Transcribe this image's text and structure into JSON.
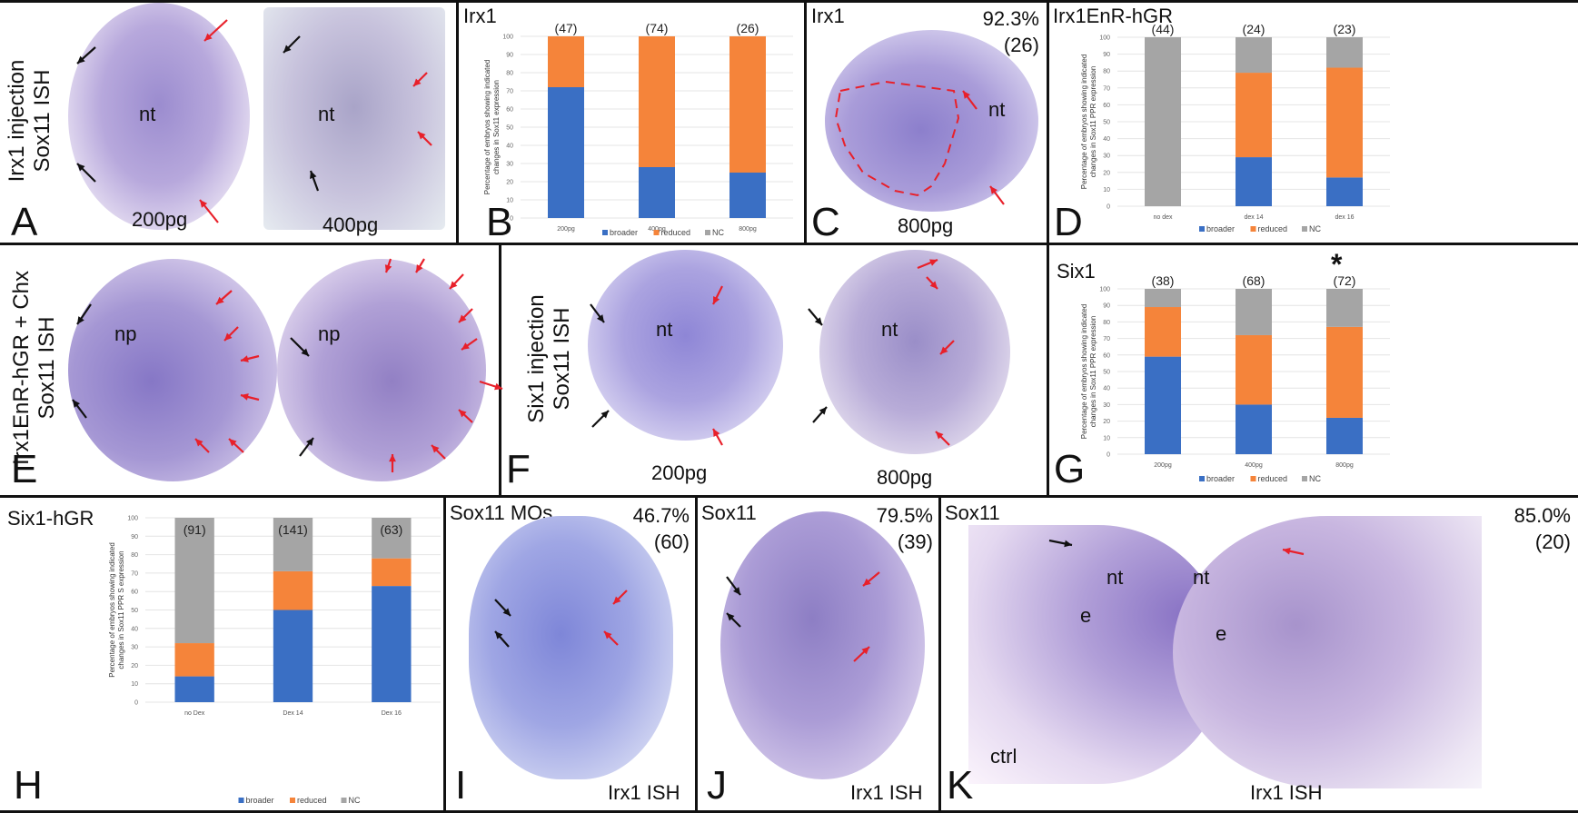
{
  "panels": {
    "A": {
      "letter": "A",
      "side_label_1": "Irx1 injection",
      "side_label_2": "Sox11 ISH",
      "doses": [
        "200pg",
        "400pg"
      ],
      "region_labels": [
        "nt",
        "nt"
      ]
    },
    "B": {
      "letter": "B",
      "title": "Irx1"
    },
    "C": {
      "letter": "C",
      "title": "Irx1",
      "percent": "92.3%",
      "n": "(26)",
      "dose": "800pg",
      "region_label": "nt"
    },
    "D": {
      "letter": "D",
      "title": "Irx1EnR-hGR"
    },
    "E": {
      "letter": "E",
      "side_label_1": "Irx1EnR-hGR + Chx",
      "side_label_2": "Sox11 ISH",
      "region_labels": [
        "np",
        "np"
      ]
    },
    "F": {
      "letter": "F",
      "side_label_1": "Six1 injection",
      "side_label_2": "Sox11 ISH",
      "doses": [
        "200pg",
        "800pg"
      ],
      "region_labels": [
        "nt",
        "nt"
      ]
    },
    "G": {
      "letter": "G",
      "title": "Six1",
      "significance": "*"
    },
    "H": {
      "letter": "H",
      "title": "Six1-hGR"
    },
    "I": {
      "letter": "I",
      "title": "Sox11 MOs",
      "percent": "46.7%",
      "n": "(60)",
      "caption": "Irx1 ISH"
    },
    "J": {
      "letter": "J",
      "title": "Sox11",
      "percent": "79.5%",
      "n": "(39)",
      "caption": "Irx1 ISH"
    },
    "K": {
      "letter": "K",
      "title": "Sox11",
      "percent": "85.0%",
      "n": "(20)",
      "caption": "Irx1 ISH",
      "ctrl": "ctrl",
      "region_labels": [
        "nt",
        "e",
        "nt",
        "e"
      ]
    }
  },
  "colors": {
    "broader": "#3a6fc4",
    "reduced": "#f5843a",
    "NC": "#a5a5a5",
    "arrow_red": "#e8202a",
    "arrow_black": "#111111",
    "embryo": "#9a8bd0"
  },
  "chart_data": [
    {
      "id": "B",
      "type": "bar",
      "stacked": true,
      "title": "Irx1",
      "ylabel": "Percentage of embryos showing indicated changes in Sox11 expression",
      "categories": [
        "200pg",
        "400pg",
        "800pg"
      ],
      "n_labels": [
        "(47)",
        "(74)",
        "(26)"
      ],
      "series": [
        {
          "name": "broader",
          "values": [
            72,
            28,
            25
          ]
        },
        {
          "name": "reduced",
          "values": [
            28,
            72,
            75
          ]
        },
        {
          "name": "NC",
          "values": [
            0,
            0,
            0
          ]
        }
      ],
      "ylim": [
        0,
        100
      ],
      "yticks": [
        0,
        10,
        20,
        30,
        40,
        50,
        60,
        70,
        80,
        90,
        100
      ],
      "grid": true,
      "legend": "bottom"
    },
    {
      "id": "D",
      "type": "bar",
      "stacked": true,
      "title": "Irx1EnR-hGR",
      "ylabel": "Percentage of embryos showing indicated changes in Sox11 PPR expression",
      "categories": [
        "no dex",
        "dex 14",
        "dex 16"
      ],
      "n_labels": [
        "(44)",
        "(24)",
        "(23)"
      ],
      "series": [
        {
          "name": "broader",
          "values": [
            0,
            29,
            17
          ]
        },
        {
          "name": "reduced",
          "values": [
            0,
            50,
            65
          ]
        },
        {
          "name": "NC",
          "values": [
            100,
            21,
            18
          ]
        }
      ],
      "ylim": [
        0,
        100
      ],
      "yticks": [
        0,
        10,
        20,
        30,
        40,
        50,
        60,
        70,
        80,
        90,
        100
      ],
      "grid": true,
      "legend": "bottom"
    },
    {
      "id": "G",
      "type": "bar",
      "stacked": true,
      "title": "Six1",
      "ylabel": "Percentage of embryos showing indicated changes in Sox11 PPR expression",
      "categories": [
        "200pg",
        "400pg",
        "800pg"
      ],
      "n_labels": [
        "(38)",
        "(68)",
        "(72)"
      ],
      "series": [
        {
          "name": "broader",
          "values": [
            59,
            30,
            22
          ]
        },
        {
          "name": "reduced",
          "values": [
            30,
            42,
            55
          ]
        },
        {
          "name": "NC",
          "values": [
            11,
            28,
            23
          ]
        }
      ],
      "ylim": [
        0,
        100
      ],
      "yticks": [
        0,
        10,
        20,
        30,
        40,
        50,
        60,
        70,
        80,
        90,
        100
      ],
      "grid": true,
      "legend": "bottom",
      "annotations": [
        "* above 800pg"
      ]
    },
    {
      "id": "H",
      "type": "bar",
      "stacked": true,
      "title": "Six1-hGR",
      "ylabel": "Percentage of embryos showing indicated changes in Sox11 PPR S expression",
      "categories": [
        "no Dex",
        "Dex 14",
        "Dex 16"
      ],
      "n_labels": [
        "(91)",
        "(141)",
        "(63)"
      ],
      "series": [
        {
          "name": "broader",
          "values": [
            14,
            50,
            63
          ]
        },
        {
          "name": "reduced",
          "values": [
            18,
            21,
            15
          ]
        },
        {
          "name": "NC",
          "values": [
            68,
            29,
            22
          ]
        }
      ],
      "ylim": [
        0,
        100
      ],
      "yticks": [
        0,
        10,
        20,
        30,
        40,
        50,
        60,
        70,
        80,
        90,
        100
      ],
      "grid": true,
      "legend": "bottom"
    }
  ]
}
